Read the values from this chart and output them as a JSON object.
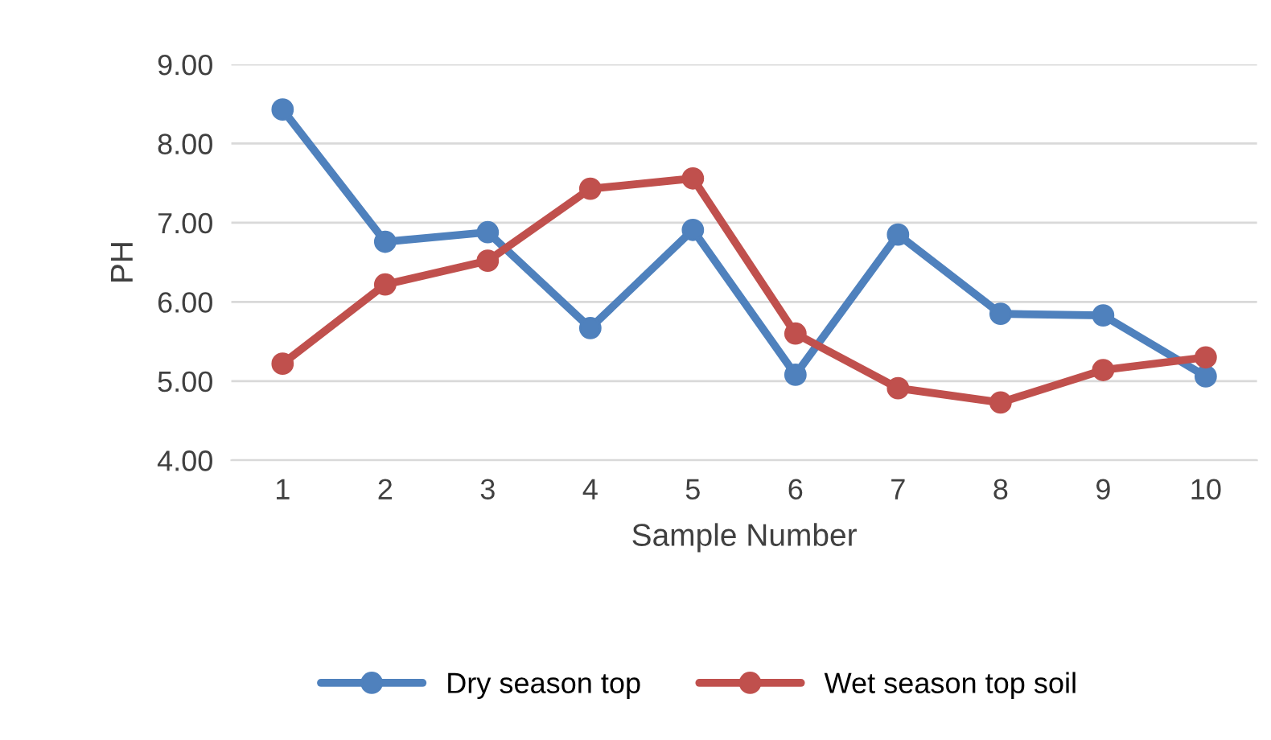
{
  "chart_data": {
    "type": "line",
    "xlabel": "Sample Number",
    "ylabel": "PH",
    "categories": [
      "1",
      "2",
      "3",
      "4",
      "5",
      "6",
      "7",
      "8",
      "9",
      "10"
    ],
    "series": [
      {
        "name": "Dry season top",
        "color": "#4f81bd",
        "values": [
          8.43,
          6.76,
          6.88,
          5.67,
          6.91,
          5.08,
          6.85,
          5.85,
          5.83,
          5.06
        ]
      },
      {
        "name": "Wet season top soil",
        "color": "#c0504d",
        "values": [
          5.22,
          6.22,
          6.52,
          7.43,
          7.56,
          5.6,
          4.91,
          4.73,
          5.14,
          5.3
        ]
      }
    ],
    "ylim": [
      4,
      9
    ],
    "yticks": [
      {
        "value": 4,
        "label": "4.00"
      },
      {
        "value": 5,
        "label": "5.00"
      },
      {
        "value": 6,
        "label": "6.00"
      },
      {
        "value": 7,
        "label": "7.00"
      },
      {
        "value": 8,
        "label": "8.00"
      },
      {
        "value": 9,
        "label": "9.00"
      }
    ],
    "grid": "y",
    "legend": "bottom",
    "marker": "circle",
    "line_style": "solid"
  }
}
